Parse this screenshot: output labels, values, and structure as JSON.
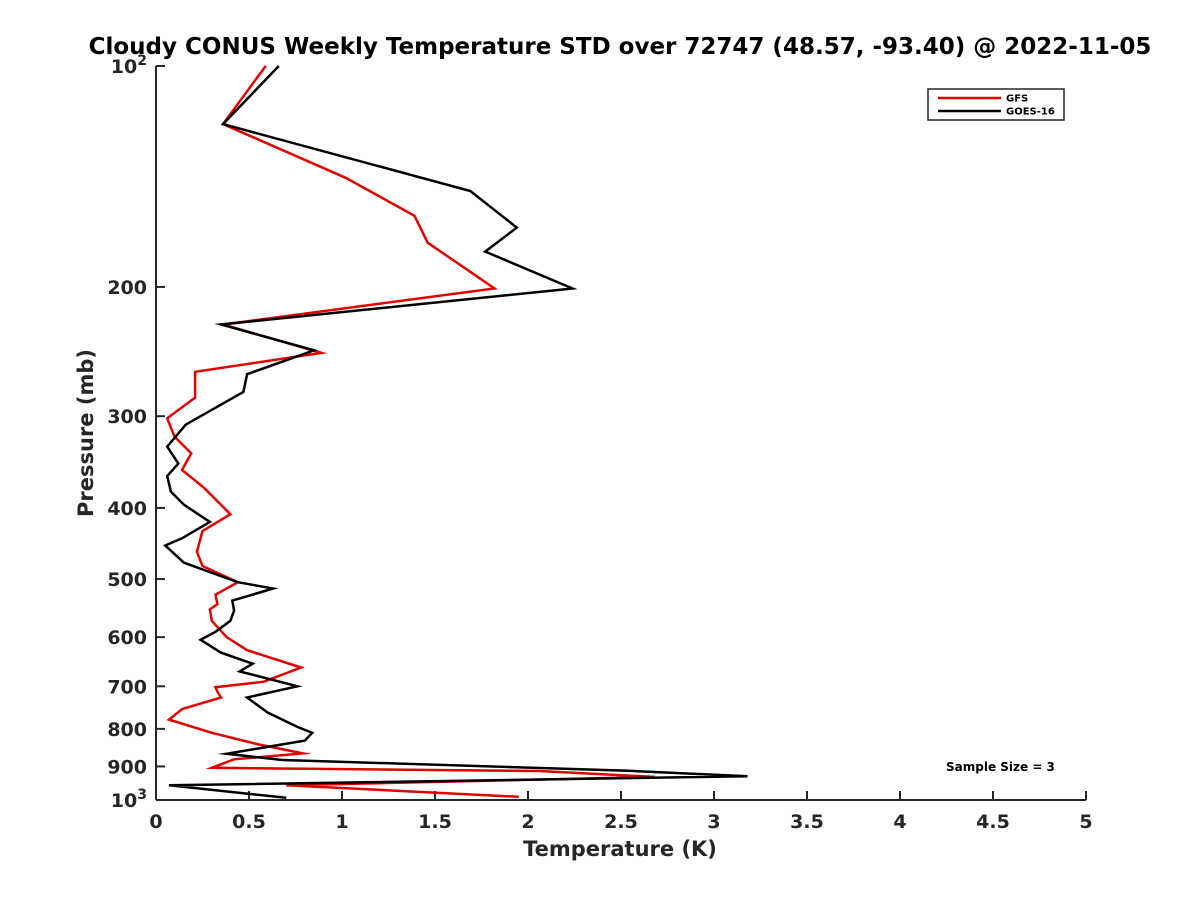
{
  "chart_data": {
    "type": "line",
    "title": "Cloudy CONUS Weekly Temperature STD over 72747 (48.57, -93.40) @ 2022-11-05",
    "xlabel": "Temperature (K)",
    "ylabel": "Pressure (mb)",
    "xlim": [
      0,
      5
    ],
    "ylim": [
      100,
      1000
    ],
    "y_scale": "log",
    "y_reversed": true,
    "x_ticks": [
      "0",
      "0.5",
      "1",
      "1.5",
      "2",
      "2.5",
      "3",
      "3.5",
      "4",
      "4.5",
      "5"
    ],
    "y_ticks": [
      {
        "value": 100,
        "base": "10",
        "exp": "2"
      },
      {
        "value": 200,
        "label": "200"
      },
      {
        "value": 300,
        "label": "300"
      },
      {
        "value": 400,
        "label": "400"
      },
      {
        "value": 500,
        "label": "500"
      },
      {
        "value": 600,
        "label": "600"
      },
      {
        "value": 700,
        "label": "700"
      },
      {
        "value": 800,
        "label": "800"
      },
      {
        "value": 900,
        "label": "900"
      },
      {
        "value": 1000,
        "base": "10",
        "exp": "3"
      }
    ],
    "grid": false,
    "legend_position": "top-right",
    "annotation": "Sample Size = 3",
    "series": [
      {
        "name": "GFS",
        "color": "#e00000",
        "points": [
          [
            0.59,
            100
          ],
          [
            0.36,
            120
          ],
          [
            1.02,
            142
          ],
          [
            1.39,
            160
          ],
          [
            1.46,
            174
          ],
          [
            1.82,
            201
          ],
          [
            0.36,
            225
          ],
          [
            0.89,
            246
          ],
          [
            0.21,
            261
          ],
          [
            0.21,
            283
          ],
          [
            0.06,
            302
          ],
          [
            0.1,
            320
          ],
          [
            0.19,
            337
          ],
          [
            0.14,
            355
          ],
          [
            0.26,
            376
          ],
          [
            0.4,
            408
          ],
          [
            0.25,
            430
          ],
          [
            0.22,
            459
          ],
          [
            0.25,
            480
          ],
          [
            0.44,
            505
          ],
          [
            0.32,
            525
          ],
          [
            0.33,
            541
          ],
          [
            0.29,
            550
          ],
          [
            0.3,
            570
          ],
          [
            0.38,
            600
          ],
          [
            0.49,
            625
          ],
          [
            0.78,
            660
          ],
          [
            0.58,
            690
          ],
          [
            0.32,
            702
          ],
          [
            0.33,
            712
          ],
          [
            0.35,
            725
          ],
          [
            0.14,
            752
          ],
          [
            0.07,
            777
          ],
          [
            0.3,
            810
          ],
          [
            0.55,
            840
          ],
          [
            0.79,
            864
          ],
          [
            0.42,
            880
          ],
          [
            0.3,
            904
          ],
          [
            2.06,
            913
          ],
          [
            2.68,
            930
          ],
          [
            0.7,
            955
          ],
          [
            1.95,
            990
          ]
        ]
      },
      {
        "name": "GOES-16",
        "color": "#000000",
        "points": [
          [
            0.66,
            100
          ],
          [
            0.36,
            120
          ],
          [
            1.69,
            148
          ],
          [
            1.94,
            166
          ],
          [
            1.77,
            179
          ],
          [
            2.24,
            201
          ],
          [
            0.35,
            225
          ],
          [
            0.85,
            244
          ],
          [
            0.49,
            263
          ],
          [
            0.47,
            278
          ],
          [
            0.16,
            308
          ],
          [
            0.06,
            330
          ],
          [
            0.12,
            348
          ],
          [
            0.06,
            362
          ],
          [
            0.08,
            380
          ],
          [
            0.15,
            396
          ],
          [
            0.29,
            418
          ],
          [
            0.14,
            440
          ],
          [
            0.05,
            450
          ],
          [
            0.15,
            475
          ],
          [
            0.44,
            505
          ],
          [
            0.63,
            515
          ],
          [
            0.41,
            535
          ],
          [
            0.42,
            552
          ],
          [
            0.4,
            570
          ],
          [
            0.32,
            590
          ],
          [
            0.24,
            605
          ],
          [
            0.35,
            630
          ],
          [
            0.52,
            652
          ],
          [
            0.45,
            668
          ],
          [
            0.76,
            700
          ],
          [
            0.49,
            725
          ],
          [
            0.6,
            760
          ],
          [
            0.76,
            795
          ],
          [
            0.84,
            810
          ],
          [
            0.8,
            830
          ],
          [
            0.38,
            865
          ],
          [
            0.68,
            882
          ],
          [
            2.52,
            912
          ],
          [
            3.18,
            928
          ],
          [
            0.07,
            955
          ],
          [
            0.7,
            993
          ]
        ]
      }
    ]
  }
}
